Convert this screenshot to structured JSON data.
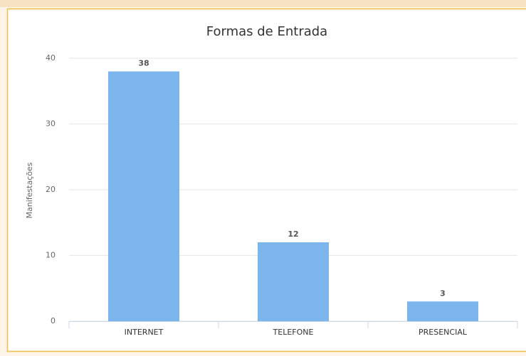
{
  "chart_data": {
    "type": "bar",
    "title": "Formas de Entrada",
    "y_label": "Manifestações",
    "categories": [
      "INTERNET",
      "TELEFONE",
      "PRESENCIAL"
    ],
    "values": [
      38,
      12,
      3
    ],
    "color": "#7cb5ec",
    "ylim": [
      0,
      40
    ],
    "yticks": [
      0,
      10,
      20,
      30,
      40
    ],
    "grid": true
  }
}
